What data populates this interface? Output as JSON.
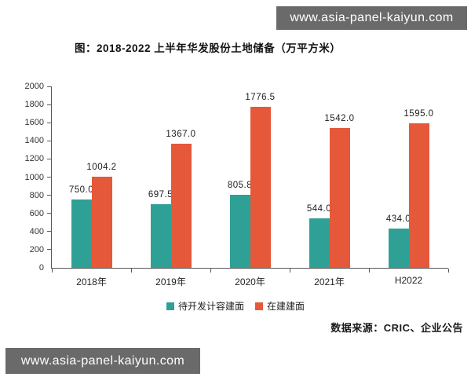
{
  "banner_top": {
    "text": "www.asia-panel-kaiyun.com"
  },
  "banner_bottom": {
    "text": "www.asia-panel-kaiyun.com"
  },
  "title": "图：2018-2022 上半年华发股份土地储备（万平方米）",
  "source": "数据来源：CRIC、企业公告",
  "colors": {
    "series1": "#2fa096",
    "series2": "#e5583a",
    "banner_bg": "#6a6a6a",
    "banner_text": "#ffffff",
    "axis": "#595959"
  },
  "chart_data": {
    "type": "bar",
    "title": "图：2018-2022 上半年华发股份土地储备（万平方米）",
    "categories": [
      "2018年",
      "2019年",
      "2020年",
      "2021年",
      "H2022"
    ],
    "series": [
      {
        "name": "待开发计容建面",
        "color": "#2fa096",
        "values": [
          750.0,
          697.5,
          805.8,
          544.0,
          434.0
        ],
        "labels": [
          "750.0",
          "697.5",
          "805.8",
          "544.0",
          "434.0"
        ]
      },
      {
        "name": "在建建面",
        "color": "#e5583a",
        "values": [
          1004.2,
          1367.0,
          1776.5,
          1542.0,
          1595.0
        ],
        "labels": [
          "1004.2",
          "1367.0",
          "1776.5",
          "1542.0",
          "1595.0"
        ]
      }
    ],
    "xlabel": "",
    "ylabel": "",
    "ylim": [
      0,
      2000
    ],
    "yticks": [
      0,
      200,
      400,
      600,
      800,
      1000,
      1200,
      1400,
      1600,
      1800,
      2000
    ],
    "grid": false,
    "legend_position": "bottom"
  }
}
